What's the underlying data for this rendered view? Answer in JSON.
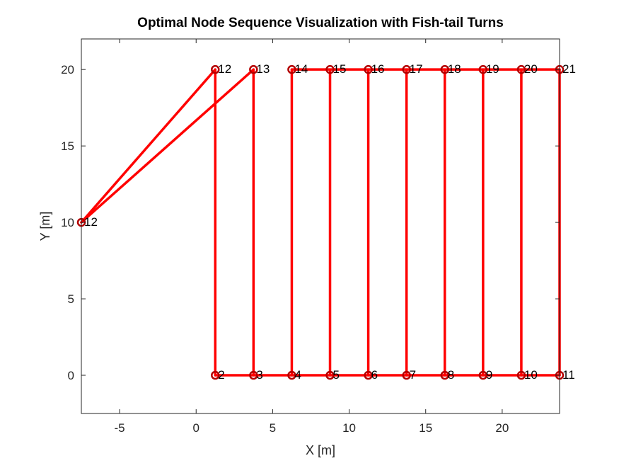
{
  "chart_data": {
    "type": "line",
    "title": "Optimal Node Sequence Visualization with Fish-tail Turns",
    "xlabel": "X [m]",
    "ylabel": "Y [m]",
    "xlim": [
      -7.5,
      23.75
    ],
    "ylim": [
      -2.5,
      22.0
    ],
    "xticks": [
      -5,
      0,
      5,
      10,
      15,
      20
    ],
    "yticks": [
      0,
      5,
      10,
      15,
      20
    ],
    "grid": false,
    "line_color": "#ff0000",
    "marker_color": "#b30000",
    "nodes": [
      {
        "label": "2",
        "x": 1.25,
        "y": 0
      },
      {
        "label": "3",
        "x": 3.75,
        "y": 0
      },
      {
        "label": "4",
        "x": 6.25,
        "y": 0
      },
      {
        "label": "5",
        "x": 8.75,
        "y": 0
      },
      {
        "label": "6",
        "x": 11.25,
        "y": 0
      },
      {
        "label": "7",
        "x": 13.75,
        "y": 0
      },
      {
        "label": "8",
        "x": 16.25,
        "y": 0
      },
      {
        "label": "9",
        "x": 18.75,
        "y": 0
      },
      {
        "label": "10",
        "x": 21.25,
        "y": 0
      },
      {
        "label": "11",
        "x": 23.75,
        "y": 0
      },
      {
        "label": "12",
        "x": 1.25,
        "y": 20
      },
      {
        "label": "13",
        "x": 3.75,
        "y": 20
      },
      {
        "label": "14",
        "x": 6.25,
        "y": 20
      },
      {
        "label": "15",
        "x": 8.75,
        "y": 20
      },
      {
        "label": "16",
        "x": 11.25,
        "y": 20
      },
      {
        "label": "17",
        "x": 13.75,
        "y": 20
      },
      {
        "label": "18",
        "x": 16.25,
        "y": 20
      },
      {
        "label": "19",
        "x": 18.75,
        "y": 20
      },
      {
        "label": "20",
        "x": 21.25,
        "y": 20
      },
      {
        "label": "21",
        "x": 23.75,
        "y": 20
      },
      {
        "label": "12",
        "x": -7.5,
        "y": 10
      }
    ],
    "segments": [
      [
        [
          -7.5,
          10
        ],
        [
          1.25,
          20
        ]
      ],
      [
        [
          -7.5,
          10
        ],
        [
          3.75,
          20
        ]
      ],
      [
        [
          1.25,
          0
        ],
        [
          23.75,
          0
        ]
      ],
      [
        [
          1.25,
          0
        ],
        [
          1.25,
          20
        ]
      ],
      [
        [
          3.75,
          0
        ],
        [
          3.75,
          20
        ]
      ],
      [
        [
          6.25,
          0
        ],
        [
          6.25,
          20
        ]
      ],
      [
        [
          8.75,
          0
        ],
        [
          8.75,
          20
        ]
      ],
      [
        [
          11.25,
          0
        ],
        [
          11.25,
          20
        ]
      ],
      [
        [
          13.75,
          0
        ],
        [
          13.75,
          20
        ]
      ],
      [
        [
          16.25,
          0
        ],
        [
          16.25,
          20
        ]
      ],
      [
        [
          18.75,
          0
        ],
        [
          18.75,
          20
        ]
      ],
      [
        [
          21.25,
          0
        ],
        [
          21.25,
          20
        ]
      ],
      [
        [
          23.75,
          0
        ],
        [
          23.75,
          20
        ]
      ],
      [
        [
          6.25,
          20
        ],
        [
          23.75,
          20
        ]
      ]
    ]
  }
}
